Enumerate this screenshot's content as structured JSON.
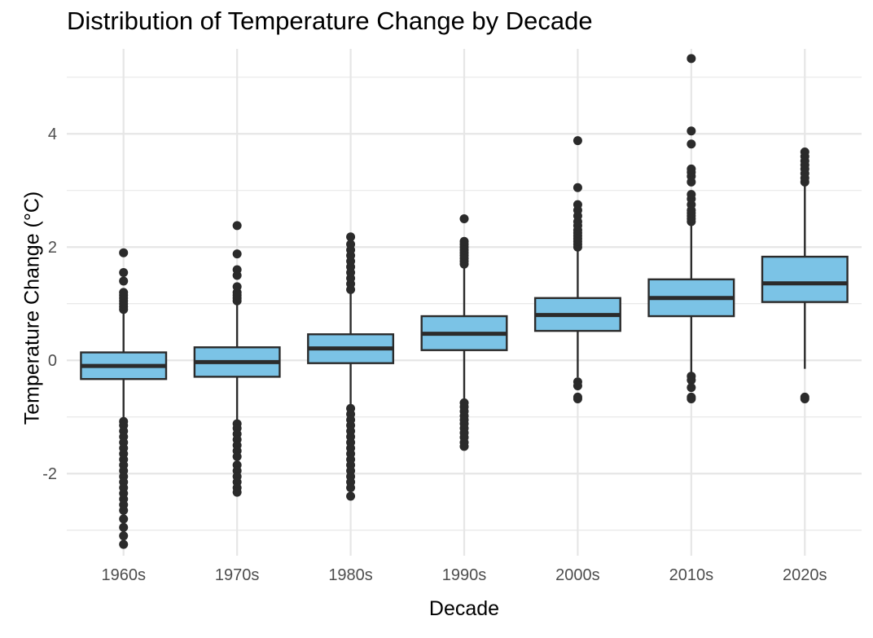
{
  "chart_data": {
    "type": "box",
    "title": "Distribution of Temperature Change by Decade",
    "xlabel": "Decade",
    "ylabel": "Temperature Change (°C)",
    "categories": [
      "1960s",
      "1970s",
      "1980s",
      "1990s",
      "2000s",
      "2010s",
      "2020s"
    ],
    "ylim": [
      -3.45,
      5.5
    ],
    "yticks": [
      -2,
      0,
      2,
      4
    ],
    "grid": true,
    "legend": "none",
    "colors": {
      "box_fill": "#7bc3e6",
      "box_stroke": "#2b2b2b",
      "grid": "#e6e6e6",
      "outlier": "#2b2b2b"
    },
    "boxes": [
      {
        "category": "1960s",
        "q1": -0.33,
        "median": -0.1,
        "q3": 0.14,
        "whisker_low": -1.05,
        "whisker_high": 0.85,
        "outliers_high": [
          0.9,
          0.95,
          1.0,
          1.05,
          1.1,
          1.15,
          1.2,
          1.4,
          1.55,
          1.9
        ],
        "outliers_low": [
          -1.08,
          -1.15,
          -1.25,
          -1.35,
          -1.45,
          -1.55,
          -1.65,
          -1.75,
          -1.85,
          -1.95,
          -2.05,
          -2.15,
          -2.25,
          -2.35,
          -2.45,
          -2.55,
          -2.65,
          -2.8,
          -2.95,
          -3.1,
          -3.25
        ]
      },
      {
        "category": "1970s",
        "q1": -0.29,
        "median": -0.03,
        "q3": 0.23,
        "whisker_low": -1.08,
        "whisker_high": 1.0,
        "outliers_high": [
          1.05,
          1.1,
          1.15,
          1.2,
          1.3,
          1.5,
          1.6,
          1.88,
          2.38
        ],
        "outliers_low": [
          -1.12,
          -1.2,
          -1.3,
          -1.4,
          -1.5,
          -1.6,
          -1.7,
          -1.85,
          -1.95,
          -2.05,
          -2.15,
          -2.25,
          -2.33
        ]
      },
      {
        "category": "1980s",
        "q1": -0.05,
        "median": 0.21,
        "q3": 0.46,
        "whisker_low": -0.82,
        "whisker_high": 1.22,
        "outliers_high": [
          1.25,
          1.35,
          1.45,
          1.55,
          1.65,
          1.75,
          1.85,
          1.95,
          2.05,
          2.18
        ],
        "outliers_low": [
          -0.85,
          -0.95,
          -1.05,
          -1.15,
          -1.25,
          -1.35,
          -1.45,
          -1.55,
          -1.65,
          -1.75,
          -1.85,
          -1.95,
          -2.05,
          -2.15,
          -2.25,
          -2.4
        ]
      },
      {
        "category": "1990s",
        "q1": 0.18,
        "median": 0.47,
        "q3": 0.78,
        "whisker_low": -0.7,
        "whisker_high": 1.65,
        "outliers_high": [
          1.7,
          1.75,
          1.8,
          1.85,
          1.9,
          1.95,
          2.0,
          2.05,
          2.1,
          2.5
        ],
        "outliers_low": [
          -0.75,
          -0.82,
          -0.9,
          -0.98,
          -1.05,
          -1.12,
          -1.2,
          -1.28,
          -1.36,
          -1.45,
          -1.52
        ]
      },
      {
        "category": "2000s",
        "q1": 0.52,
        "median": 0.8,
        "q3": 1.1,
        "whisker_low": -0.3,
        "whisker_high": 1.95,
        "outliers_high": [
          2.0,
          2.05,
          2.1,
          2.15,
          2.2,
          2.25,
          2.3,
          2.38,
          2.45,
          2.55,
          2.65,
          2.75,
          3.05,
          3.88
        ],
        "outliers_low": [
          -0.38,
          -0.45,
          -0.65,
          -0.68
        ]
      },
      {
        "category": "2010s",
        "q1": 0.78,
        "median": 1.1,
        "q3": 1.43,
        "whisker_low": -0.22,
        "whisker_high": 2.4,
        "outliers_high": [
          2.45,
          2.5,
          2.55,
          2.6,
          2.65,
          2.75,
          2.85,
          2.93,
          3.15,
          3.25,
          3.32,
          3.38,
          3.82,
          4.05,
          5.33
        ],
        "outliers_low": [
          -0.28,
          -0.35,
          -0.48,
          -0.65,
          -0.68
        ]
      },
      {
        "category": "2020s",
        "q1": 1.03,
        "median": 1.36,
        "q3": 1.83,
        "whisker_low": -0.15,
        "whisker_high": 3.08,
        "outliers_high": [
          3.15,
          3.22,
          3.3,
          3.38,
          3.45,
          3.52,
          3.6,
          3.68
        ],
        "outliers_low": [
          -0.65,
          -0.68
        ]
      }
    ]
  }
}
